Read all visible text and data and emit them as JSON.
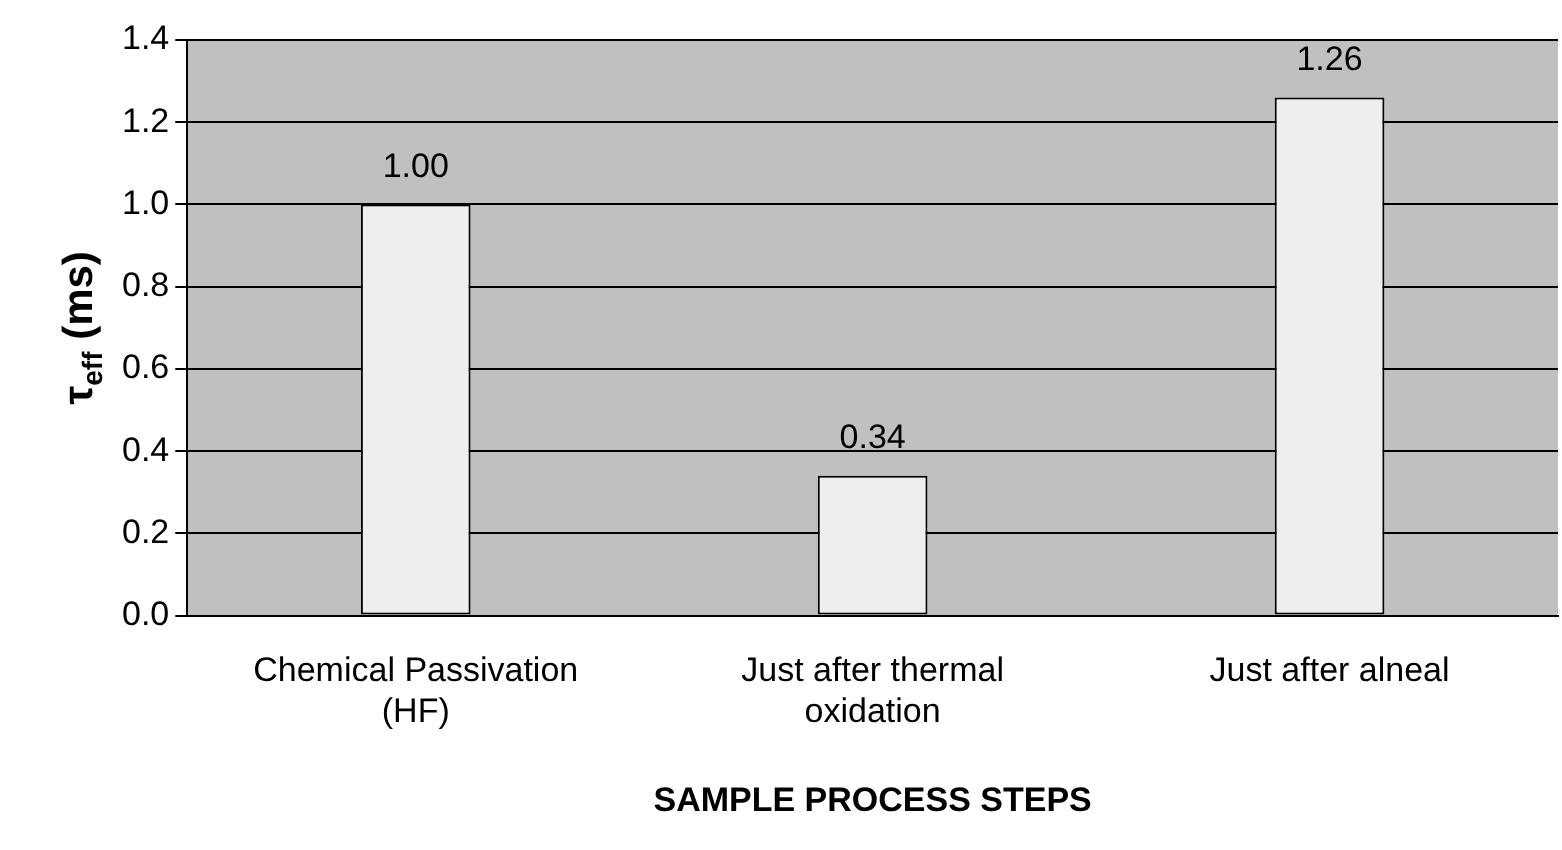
{
  "chart_data": {
    "type": "bar",
    "xlabel": "SAMPLE PROCESS STEPS",
    "ylabel": "τ$_{eff}$ (ms)",
    "categories": [
      "Chemical Passivation (HF)",
      "Just after thermal oxidation",
      "Just after alneal"
    ],
    "values": [
      1.0,
      0.34,
      1.26
    ],
    "color": "#eeeeee",
    "ylim": [
      0,
      1.4
    ],
    "yticks": [
      {
        "value": 0,
        "label": "0.0"
      },
      {
        "value": 0.2,
        "label": "0.2"
      },
      {
        "value": 0.4,
        "label": "0.4"
      },
      {
        "value": 0.6,
        "label": "0.6"
      },
      {
        "value": 0.8,
        "label": "0.8"
      },
      {
        "value": 1,
        "label": "1.0"
      },
      {
        "value": 1.2,
        "label": "1.2"
      },
      {
        "value": 1.4,
        "label": "1.4"
      }
    ],
    "grid": "y",
    "data_labels": true,
    "value_labels": [
      "1.00",
      "0.34",
      "1.26"
    ]
  }
}
